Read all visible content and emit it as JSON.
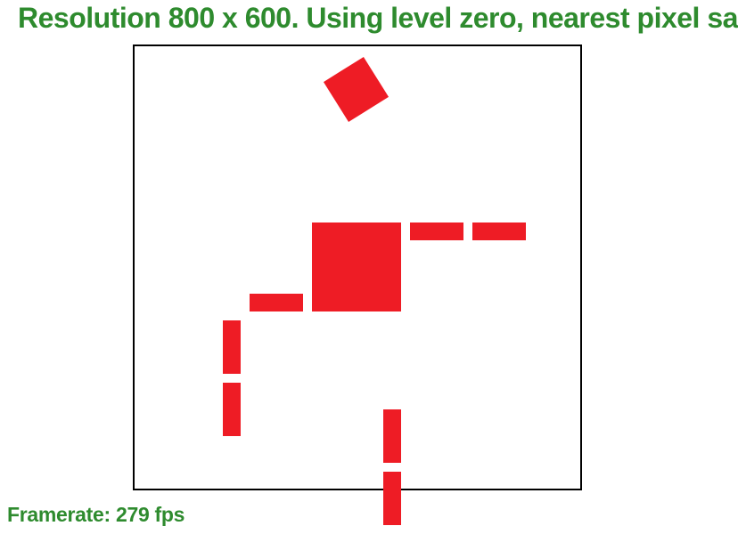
{
  "header": {
    "title": "Resolution 800 x 600. Using level zero, nearest pixel sa"
  },
  "footer": {
    "framerate_text": "Framerate: 279 fps"
  },
  "colors": {
    "text": "#2e8b2e",
    "shape_fill": "#ee1c25",
    "viewport_border": "#000000",
    "background": "#ffffff"
  }
}
